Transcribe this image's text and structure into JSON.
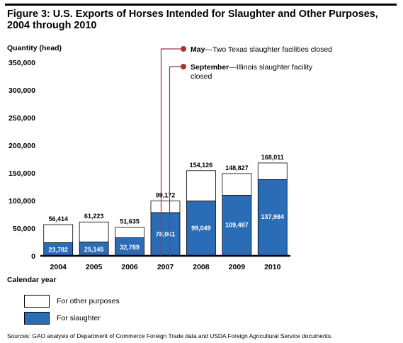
{
  "chart_data": {
    "type": "bar",
    "stacked": true,
    "title": "Figure 3: U.S. Exports of Horses Intended for Slaughter and Other Purposes, 2004 through 2010",
    "ylabel": "Quantity (head)",
    "xlabel": "Calendar year",
    "ylim": [
      0,
      350000
    ],
    "yticks": [
      0,
      50000,
      100000,
      150000,
      200000,
      250000,
      300000,
      350000
    ],
    "ytick_labels": [
      "0",
      "50,000",
      "100,000",
      "150,000",
      "200,000",
      "250,000",
      "300,000",
      "350,000"
    ],
    "categories": [
      "2004",
      "2005",
      "2006",
      "2007",
      "2008",
      "2009",
      "2010"
    ],
    "series": [
      {
        "name": "For slaughter",
        "color": "#2a6cb5",
        "values": [
          23782,
          25145,
          32789,
          78061,
          99049,
          109487,
          137984
        ],
        "labels": [
          "23,782",
          "25,145",
          "32,789",
          "78,061",
          "99,049",
          "109,487",
          "137,984"
        ]
      },
      {
        "name": "For other purposes",
        "color": "#ffffff",
        "values": [
          32632,
          36078,
          18846,
          21111,
          55077,
          39340,
          30027
        ]
      }
    ],
    "totals": [
      56414,
      61223,
      51635,
      99172,
      154126,
      148827,
      168011
    ],
    "total_labels": [
      "56,414",
      "61,223",
      "51,635",
      "99,172",
      "154,126",
      "148,827",
      "168,011"
    ],
    "annotations": [
      {
        "bold": "May",
        "text": "—Two Texas slaughter facilities closed",
        "category": "2007",
        "color": "#a4343a"
      },
      {
        "bold": "September",
        "text": "—Illinois slaughter facility",
        "text2": "closed",
        "category": "2007",
        "color": "#a4343a"
      }
    ],
    "legend": {
      "position": "bottom-left",
      "items": [
        {
          "label": "For other purposes",
          "color": "#ffffff"
        },
        {
          "label": "For slaughter",
          "color": "#2a6cb5"
        }
      ]
    },
    "grid": false
  },
  "source": "Sources: GAO analysis of Department of Commerce Foreign Trade data and USDA Foreign Agricultural Service documents."
}
